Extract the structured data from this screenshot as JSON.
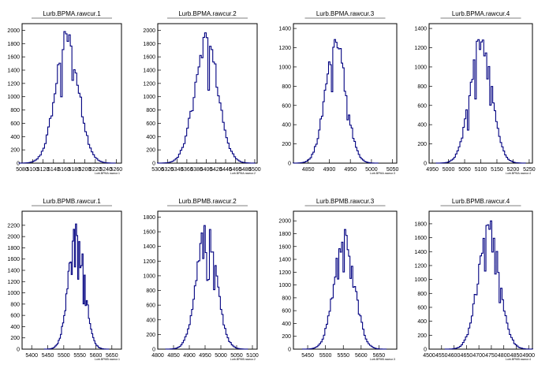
{
  "chart_data": [
    {
      "type": "histogram",
      "title": "Lurb.BPMA.rawcur.1",
      "xlabel": "Lurb.BPMA.rawcur.1",
      "xlim": [
        5080,
        5270
      ],
      "xticks": [
        5080,
        5100,
        5120,
        5140,
        5160,
        5180,
        5200,
        5220,
        5240,
        5260
      ],
      "ylim": [
        0,
        2100
      ],
      "yticks": [
        0,
        200,
        400,
        600,
        800,
        1000,
        1200,
        1400,
        1600,
        1800,
        2000
      ],
      "peak": 1980,
      "mean": 5166,
      "sigma": 22
    },
    {
      "type": "histogram",
      "title": "Lurb.BPMA.rawcur.2",
      "xlabel": "Lurb.BPMA.rawcur.2",
      "xlim": [
        5300,
        5505
      ],
      "xticks": [
        5300,
        5320,
        5340,
        5360,
        5380,
        5400,
        5420,
        5440,
        5460,
        5480,
        5500
      ],
      "ylim": [
        0,
        2100
      ],
      "yticks": [
        0,
        200,
        400,
        600,
        800,
        1000,
        1200,
        1400,
        1600,
        1800,
        2000
      ],
      "peak": 1980,
      "mean": 5400,
      "sigma": 24
    },
    {
      "type": "histogram",
      "title": "Lurb.BPMA.rawcur.3",
      "xlabel": "Lurb.BPMA.rawcur.3",
      "xlim": [
        4815,
        5060
      ],
      "xticks": [
        4850,
        4900,
        4950,
        5000,
        5050
      ],
      "ylim": [
        0,
        1450
      ],
      "yticks": [
        0,
        200,
        400,
        600,
        800,
        1000,
        1200,
        1400
      ],
      "peak": 1320,
      "mean": 4915,
      "sigma": 24
    },
    {
      "type": "histogram",
      "title": "Lurb.BPMA.rawcur.4",
      "xlabel": "Lurb.BPMA.rawcur.4",
      "xlim": [
        4940,
        5260
      ],
      "xticks": [
        4950,
        5000,
        5050,
        5100,
        5150,
        5200,
        5250
      ],
      "ylim": [
        0,
        1450
      ],
      "yticks": [
        0,
        200,
        400,
        600,
        800,
        1000,
        1200,
        1400
      ],
      "peak": 1360,
      "mean": 5100,
      "sigma": 33
    },
    {
      "type": "histogram",
      "title": "Lurb.BPMB.rawcur.1",
      "xlabel": "Lurb.BPMB.rawcur.1",
      "xlim": [
        5370,
        5680
      ],
      "xticks": [
        5400,
        5450,
        5500,
        5550,
        5600,
        5650
      ],
      "ylim": [
        0,
        2450
      ],
      "yticks": [
        0,
        200,
        400,
        600,
        800,
        1000,
        1200,
        1400,
        1600,
        1800,
        2000,
        2200
      ],
      "peak": 2340,
      "mean": 5540,
      "sigma": 24
    },
    {
      "type": "histogram",
      "title": "Lurb.BPMB.rawcur.2",
      "xlabel": "Lurb.BPMB.rawcur.2",
      "xlim": [
        4800,
        5115
      ],
      "xticks": [
        4800,
        4850,
        4900,
        4950,
        5000,
        5050,
        5100
      ],
      "ylim": [
        0,
        1880
      ],
      "yticks": [
        0,
        200,
        400,
        600,
        800,
        1000,
        1200,
        1400,
        1600,
        1800
      ],
      "peak": 1760,
      "mean": 4955,
      "sigma": 31
    },
    {
      "type": "histogram",
      "title": "Lurb.BPMB.rawcur.3",
      "xlabel": "Lurb.BPMB.rawcur.3",
      "xlim": [
        5410,
        5700
      ],
      "xticks": [
        5450,
        5500,
        5550,
        5600,
        5650
      ],
      "ylim": [
        0,
        2150
      ],
      "yticks": [
        0,
        200,
        400,
        600,
        800,
        1000,
        1200,
        1400,
        1600,
        1800,
        2000
      ],
      "peak": 1880,
      "mean": 5553,
      "sigma": 28
    },
    {
      "type": "histogram",
      "title": "Lurb.BPMB.rawcur.4",
      "xlabel": "Lurb.BPMB.rawcur.4",
      "xlim": [
        4500,
        4915
      ],
      "xticks": [
        4500,
        4550,
        4600,
        4650,
        4700,
        4750,
        4800,
        4850,
        4900
      ],
      "ylim": [
        0,
        1980
      ],
      "yticks": [
        0,
        200,
        400,
        600,
        800,
        1000,
        1200,
        1400,
        1600,
        1800
      ],
      "peak": 1860,
      "mean": 4740,
      "sigma": 42
    }
  ],
  "colors": {
    "histogram": "#000080",
    "axis": "#000000",
    "title": "#000000"
  }
}
